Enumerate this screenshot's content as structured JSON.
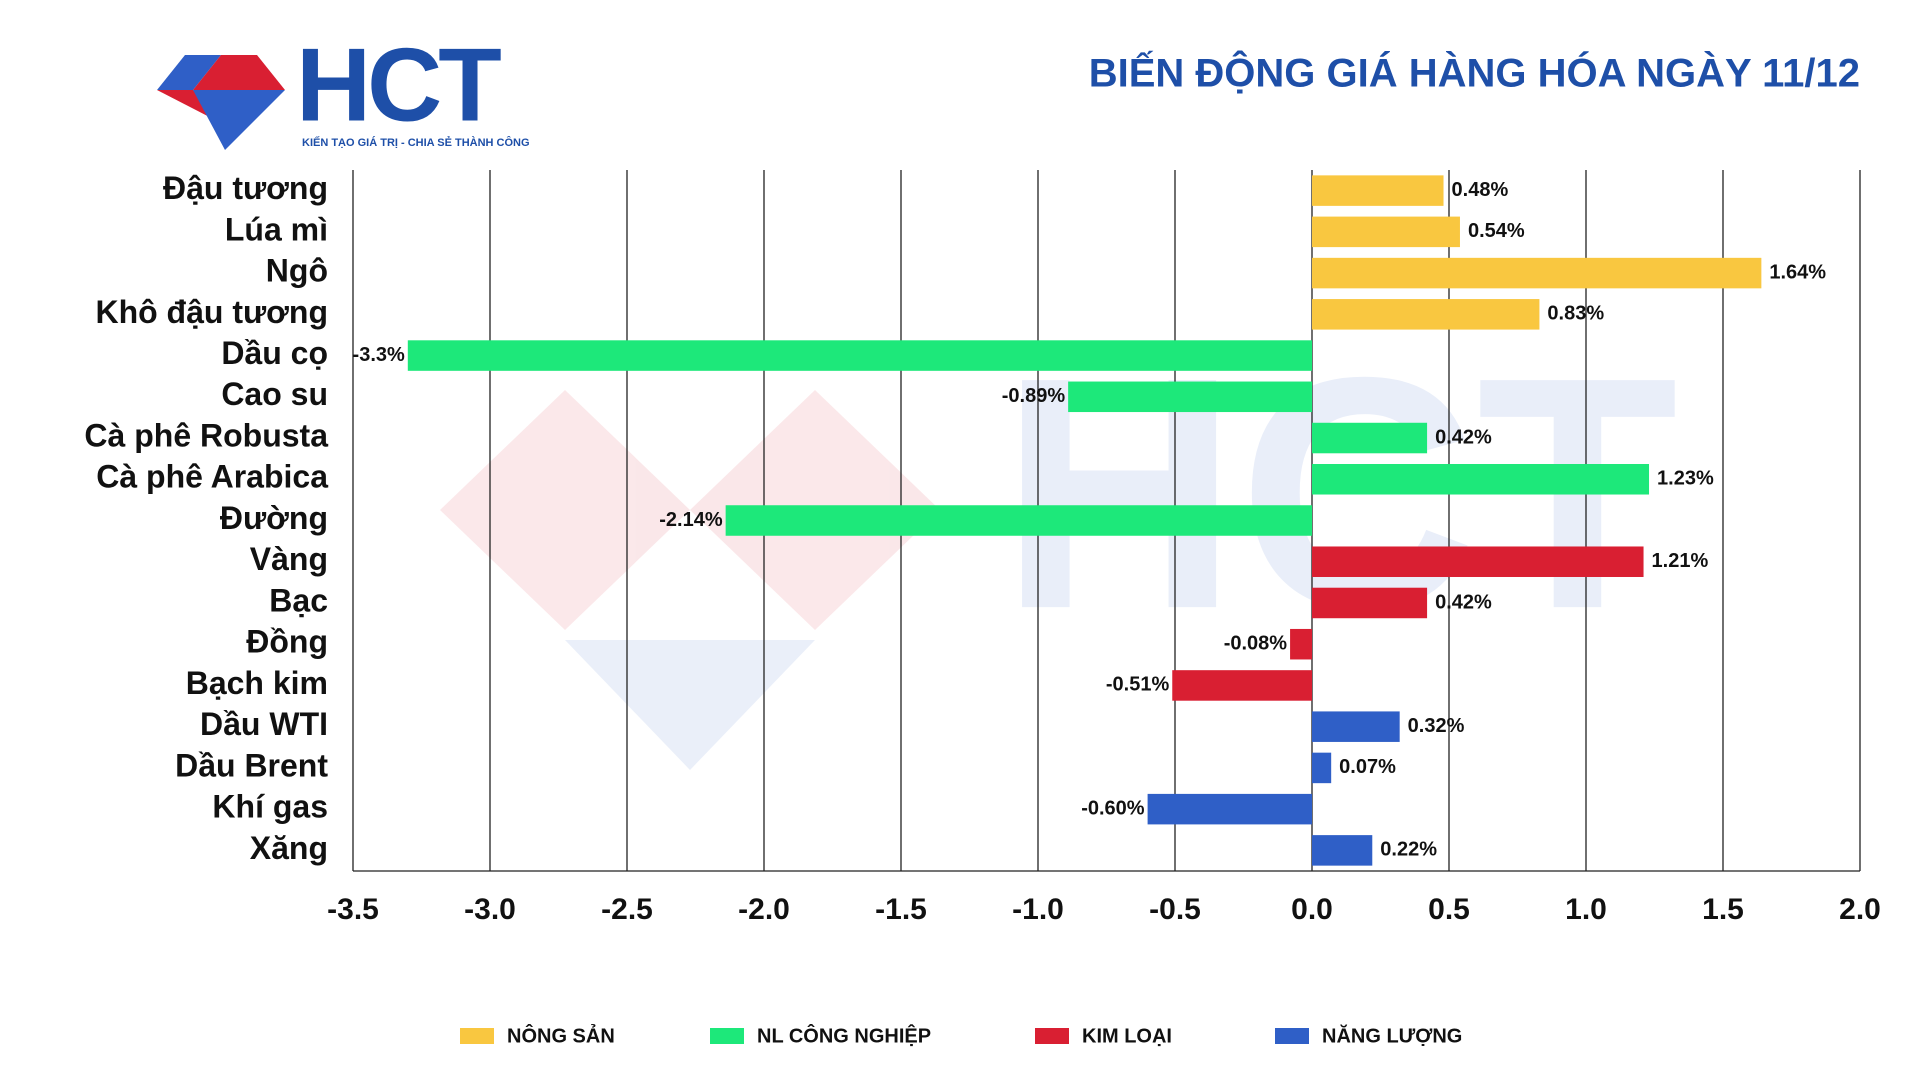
{
  "chart_data": {
    "type": "hbar",
    "title": "BIẾN ĐỘNG GIÁ HÀNG HÓA NGÀY 11/12",
    "logo": {
      "text": "HCT",
      "tagline": "KIẾN TẠO GIÁ TRỊ - CHIA SẺ THÀNH CÔNG"
    },
    "categories": [
      "Đậu tương",
      "Lúa mì",
      "Ngô",
      "Khô đậu tương",
      "Dầu cọ",
      "Cao su",
      "Cà phê Robusta",
      "Cà phê Arabica",
      "Đường",
      "Vàng",
      "Bạc",
      "Đồng",
      "Bạch kim",
      "Dầu WTI",
      "Dầu Brent",
      "Khí gas",
      "Xăng"
    ],
    "series": [
      {
        "name": "NÔNG SẢN",
        "color": "#f9c740",
        "values": [
          0.48,
          0.54,
          1.64,
          0.83,
          null,
          null,
          null,
          null,
          null,
          null,
          null,
          null,
          null,
          null,
          null,
          null,
          null
        ],
        "value_labels": [
          "0.48%",
          "0.54%",
          "1.64%",
          "0.83%",
          null,
          null,
          null,
          null,
          null,
          null,
          null,
          null,
          null,
          null,
          null,
          null,
          null
        ]
      },
      {
        "name": "NL CÔNG NGHIỆP",
        "color": "#1de87a",
        "values": [
          null,
          null,
          null,
          null,
          -3.3,
          -0.89,
          0.42,
          1.23,
          -2.14,
          null,
          null,
          null,
          null,
          null,
          null,
          null,
          null
        ],
        "value_labels": [
          null,
          null,
          null,
          null,
          "-3.3%",
          "-0.89%",
          "0.42%",
          "1.23%",
          "-2.14%",
          null,
          null,
          null,
          null,
          null,
          null,
          null,
          null
        ]
      },
      {
        "name": "KIM LOẠI",
        "color": "#d91f32",
        "values": [
          null,
          null,
          null,
          null,
          null,
          null,
          null,
          null,
          null,
          1.21,
          0.42,
          -0.08,
          -0.51,
          null,
          null,
          null,
          null
        ],
        "value_labels": [
          null,
          null,
          null,
          null,
          null,
          null,
          null,
          null,
          null,
          "1.21%",
          "0.42%",
          "-0.08%",
          "-0.51%",
          null,
          null,
          null,
          null
        ]
      },
      {
        "name": "NĂNG LƯỢNG",
        "color": "#2f5fc7",
        "values": [
          null,
          null,
          null,
          null,
          null,
          null,
          null,
          null,
          null,
          null,
          null,
          null,
          null,
          0.32,
          0.07,
          -0.6,
          0.22
        ],
        "value_labels": [
          null,
          null,
          null,
          null,
          null,
          null,
          null,
          null,
          null,
          null,
          null,
          null,
          null,
          "0.32%",
          "0.07%",
          "-0.60%",
          "0.22%"
        ]
      }
    ],
    "xlim": [
      -3.5,
      2
    ],
    "xticks": [
      -3.5,
      {
        "value": -3,
        "label": "-3.0"
      },
      -2.5,
      {
        "value": -2,
        "label": "-2.0"
      },
      -1.5,
      {
        "value": -1,
        "label": "-1.0"
      },
      -0.5,
      {
        "value": 0,
        "label": "0.0"
      },
      0.5,
      {
        "value": 1,
        "label": "1.0"
      },
      1.5,
      {
        "value": 2,
        "label": "2.0"
      }
    ],
    "grid": true
  }
}
